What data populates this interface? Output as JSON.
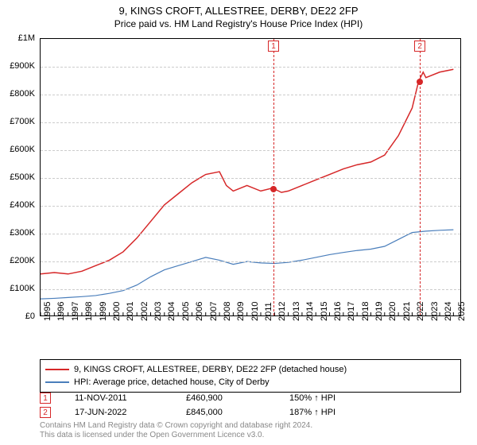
{
  "titles": {
    "line1": "9, KINGS CROFT, ALLESTREE, DERBY, DE22 2FP",
    "line2": "Price paid vs. HM Land Registry's House Price Index (HPI)"
  },
  "chart": {
    "type": "line",
    "xlim": [
      1995,
      2025.5
    ],
    "ylim": [
      0,
      1000000
    ],
    "ytick_step": 100000,
    "ytick_labels": [
      "£0",
      "£100K",
      "£200K",
      "£300K",
      "£400K",
      "£500K",
      "£600K",
      "£700K",
      "£800K",
      "£900K",
      "£1M"
    ],
    "x_years": [
      1995,
      1996,
      1997,
      1998,
      1999,
      2000,
      2001,
      2002,
      2003,
      2004,
      2005,
      2006,
      2007,
      2008,
      2009,
      2010,
      2011,
      2012,
      2013,
      2014,
      2015,
      2016,
      2017,
      2018,
      2019,
      2020,
      2021,
      2022,
      2023,
      2024,
      2025
    ],
    "background_color": "#ffffff",
    "grid_color": "#cccccc",
    "series": [
      {
        "name": "price_paid",
        "label": "9, KINGS CROFT, ALLESTREE, DERBY, DE22 2FP (detached house)",
        "color": "#d62728",
        "line_width": 1.5,
        "points": [
          [
            1995,
            150000
          ],
          [
            1996,
            155000
          ],
          [
            1997,
            150000
          ],
          [
            1998,
            160000
          ],
          [
            1999,
            180000
          ],
          [
            2000,
            200000
          ],
          [
            2001,
            230000
          ],
          [
            2002,
            280000
          ],
          [
            2003,
            340000
          ],
          [
            2004,
            400000
          ],
          [
            2005,
            440000
          ],
          [
            2006,
            480000
          ],
          [
            2007,
            510000
          ],
          [
            2008,
            520000
          ],
          [
            2008.5,
            470000
          ],
          [
            2009,
            450000
          ],
          [
            2010,
            470000
          ],
          [
            2011,
            450000
          ],
          [
            2011.86,
            460900
          ],
          [
            2012.5,
            445000
          ],
          [
            2013,
            450000
          ],
          [
            2014,
            470000
          ],
          [
            2015,
            490000
          ],
          [
            2016,
            510000
          ],
          [
            2017,
            530000
          ],
          [
            2018,
            545000
          ],
          [
            2019,
            555000
          ],
          [
            2020,
            580000
          ],
          [
            2021,
            650000
          ],
          [
            2022,
            750000
          ],
          [
            2022.46,
            845000
          ],
          [
            2022.8,
            880000
          ],
          [
            2023,
            860000
          ],
          [
            2024,
            880000
          ],
          [
            2025,
            890000
          ]
        ]
      },
      {
        "name": "hpi",
        "label": "HPI: Average price, detached house, City of Derby",
        "color": "#4a7ebb",
        "line_width": 1.2,
        "points": [
          [
            1995,
            60000
          ],
          [
            1996,
            62000
          ],
          [
            1997,
            65000
          ],
          [
            1998,
            68000
          ],
          [
            1999,
            72000
          ],
          [
            2000,
            80000
          ],
          [
            2001,
            90000
          ],
          [
            2002,
            110000
          ],
          [
            2003,
            140000
          ],
          [
            2004,
            165000
          ],
          [
            2005,
            180000
          ],
          [
            2006,
            195000
          ],
          [
            2007,
            210000
          ],
          [
            2008,
            200000
          ],
          [
            2009,
            185000
          ],
          [
            2010,
            195000
          ],
          [
            2011,
            190000
          ],
          [
            2012,
            188000
          ],
          [
            2013,
            192000
          ],
          [
            2014,
            200000
          ],
          [
            2015,
            210000
          ],
          [
            2016,
            220000
          ],
          [
            2017,
            228000
          ],
          [
            2018,
            235000
          ],
          [
            2019,
            240000
          ],
          [
            2020,
            250000
          ],
          [
            2021,
            275000
          ],
          [
            2022,
            300000
          ],
          [
            2023,
            305000
          ],
          [
            2024,
            308000
          ],
          [
            2025,
            310000
          ]
        ]
      }
    ],
    "sale_markers": [
      {
        "n": "1",
        "x": 2011.86,
        "y": 460900,
        "color": "#d62728"
      },
      {
        "n": "2",
        "x": 2022.46,
        "y": 845000,
        "color": "#d62728"
      }
    ]
  },
  "legend": {
    "items": [
      {
        "color": "#d62728",
        "text": "9, KINGS CROFT, ALLESTREE, DERBY, DE22 2FP (detached house)"
      },
      {
        "color": "#4a7ebb",
        "text": "HPI: Average price, detached house, City of Derby"
      }
    ]
  },
  "sales": [
    {
      "n": "1",
      "color": "#d62728",
      "date": "11-NOV-2011",
      "price": "£460,900",
      "pct": "150% ↑ HPI"
    },
    {
      "n": "2",
      "color": "#d62728",
      "date": "17-JUN-2022",
      "price": "£845,000",
      "pct": "187% ↑ HPI"
    }
  ],
  "footer": {
    "line1": "Contains HM Land Registry data © Crown copyright and database right 2024.",
    "line2": "This data is licensed under the Open Government Licence v3.0."
  }
}
